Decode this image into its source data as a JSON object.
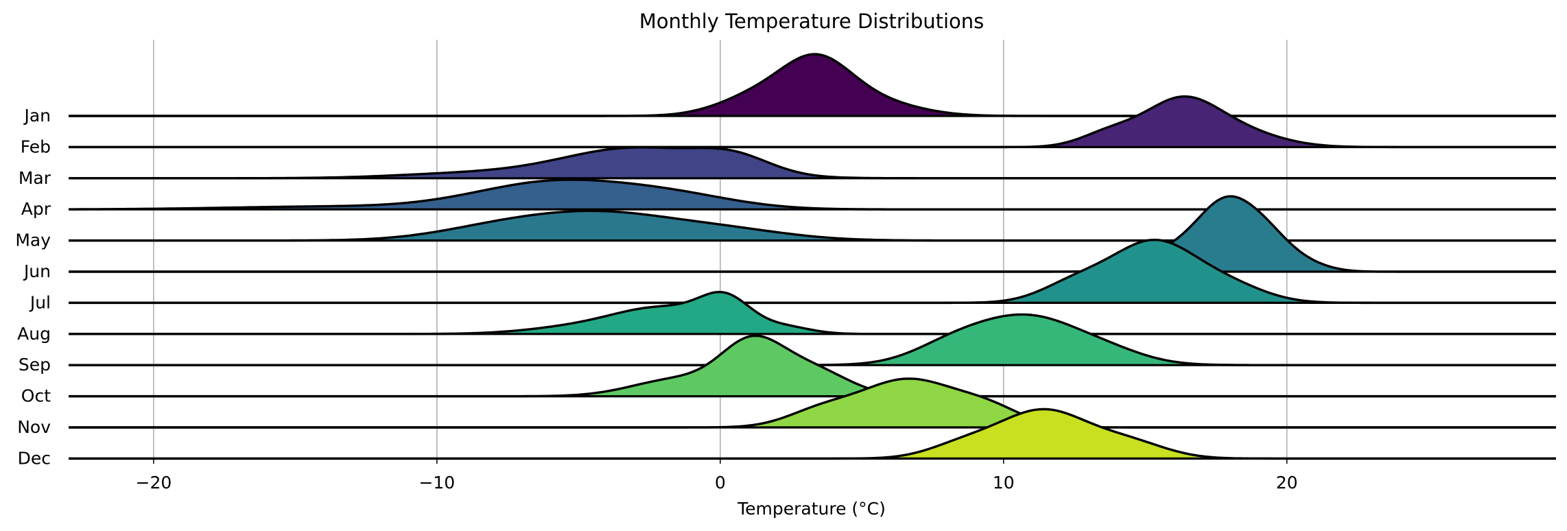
{
  "chart_data": {
    "type": "ridgeline",
    "title": "Monthly Temperature Distributions",
    "xlabel": "Temperature (°C)",
    "ylabel": "",
    "xlim": [
      -23,
      29.5
    ],
    "xticks": [
      -20,
      -10,
      0,
      10,
      20
    ],
    "xtick_labels": [
      "−20",
      "−10",
      "0",
      "10",
      "20"
    ],
    "grid": "x-axis vertical lines",
    "series": [
      {
        "name": "Jan",
        "color": "#440154",
        "mode": 3.4,
        "peak": 1.0,
        "lo": -2,
        "hi": 9,
        "comps": [
          [
            3.4,
            1.2,
            0.9
          ],
          [
            1.4,
            1.4,
            0.4
          ],
          [
            5.2,
            1.6,
            0.3
          ]
        ]
      },
      {
        "name": "Feb",
        "color": "#482475",
        "mode": 16.2,
        "peak": 0.82,
        "lo": 11,
        "hi": 22,
        "comps": [
          [
            16.2,
            1.3,
            1.0
          ],
          [
            13.7,
            1.0,
            0.3
          ],
          [
            18.2,
            1.5,
            0.35
          ]
        ]
      },
      {
        "name": "Mar",
        "color": "#414487",
        "mode": -3.0,
        "peak": 0.5,
        "lo": -18,
        "hi": 6,
        "comps": [
          [
            -3.0,
            2.6,
            1.0
          ],
          [
            0.5,
            1.3,
            0.5
          ],
          [
            -9.0,
            2.5,
            0.15
          ]
        ]
      },
      {
        "name": "Apr",
        "color": "#355f8d",
        "mode": -5.8,
        "peak": 0.48,
        "lo": -23,
        "hi": 5,
        "comps": [
          [
            -5.8,
            2.8,
            1.0
          ],
          [
            -1.5,
            2.2,
            0.4
          ],
          [
            -14.0,
            3.5,
            0.1
          ]
        ]
      },
      {
        "name": "May",
        "color": "#2a788e",
        "mode": -4.0,
        "peak": 0.48,
        "lo": -17,
        "hi": 7,
        "comps": [
          [
            -4.0,
            2.3,
            0.9
          ],
          [
            -7.5,
            2.3,
            0.6
          ],
          [
            0.0,
            2.3,
            0.45
          ]
        ]
      },
      {
        "name": "Jun",
        "color": "#287c8e",
        "mode": 17.9,
        "peak": 1.22,
        "lo": 12,
        "hi": 24,
        "comps": [
          [
            17.9,
            1.0,
            1.0
          ],
          [
            19.3,
            0.8,
            0.35
          ],
          [
            16.0,
            1.1,
            0.3
          ],
          [
            20.4,
            0.9,
            0.15
          ]
        ]
      },
      {
        "name": "Jul",
        "color": "#21918c",
        "mode": 15.3,
        "peak": 1.02,
        "lo": 10,
        "hi": 21,
        "comps": [
          [
            15.3,
            1.5,
            1.0
          ],
          [
            12.5,
            1.2,
            0.3
          ],
          [
            18.0,
            1.3,
            0.25
          ]
        ]
      },
      {
        "name": "Aug",
        "color": "#22a884",
        "mode": 0.2,
        "peak": 0.68,
        "lo": -9,
        "hi": 6,
        "comps": [
          [
            0.2,
            0.9,
            0.9
          ],
          [
            -2.0,
            1.7,
            0.75
          ],
          [
            -5.0,
            1.8,
            0.2
          ],
          [
            2.3,
            0.9,
            0.2
          ]
        ]
      },
      {
        "name": "Sep",
        "color": "#35b779",
        "mode": 10.8,
        "peak": 0.82,
        "lo": 3,
        "hi": 18,
        "comps": [
          [
            10.8,
            2.1,
            1.0
          ],
          [
            8.0,
            1.3,
            0.2
          ],
          [
            14.0,
            1.2,
            0.1
          ]
        ]
      },
      {
        "name": "Oct",
        "color": "#5ec962",
        "mode": 1.1,
        "peak": 0.98,
        "lo": -5,
        "hi": 8,
        "comps": [
          [
            1.1,
            1.1,
            1.0
          ],
          [
            -1.5,
            1.6,
            0.35
          ],
          [
            3.2,
            1.3,
            0.55
          ]
        ]
      },
      {
        "name": "Nov",
        "color": "#8fd744",
        "mode": 6.6,
        "peak": 0.79,
        "lo": 0,
        "hi": 12,
        "comps": [
          [
            6.6,
            1.7,
            1.0
          ],
          [
            3.5,
            1.2,
            0.3
          ],
          [
            9.5,
            1.2,
            0.35
          ]
        ]
      },
      {
        "name": "Dec",
        "color": "#c8e020",
        "mode": 11.4,
        "peak": 0.8,
        "lo": 6,
        "hi": 18,
        "comps": [
          [
            11.4,
            1.6,
            1.0
          ],
          [
            8.5,
            1.2,
            0.25
          ],
          [
            14.5,
            1.3,
            0.3
          ]
        ]
      }
    ]
  }
}
